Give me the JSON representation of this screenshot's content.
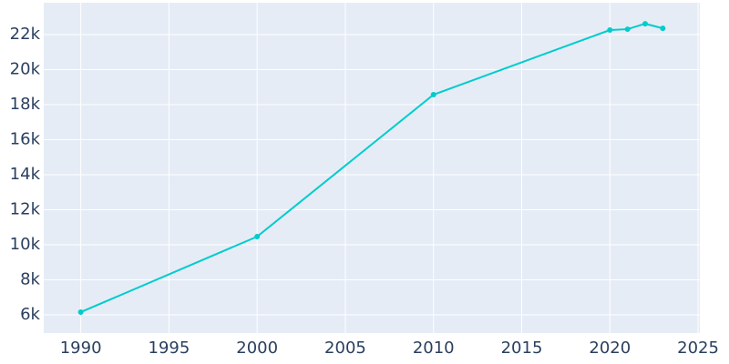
{
  "chart_data": {
    "type": "line",
    "x": [
      1990,
      2000,
      2010,
      2020,
      2021,
      2022,
      2023
    ],
    "series": [
      {
        "color": "#00cccc",
        "values": [
          6156,
          10468,
          18571,
          22260,
          22310,
          22620,
          22360
        ]
      }
    ],
    "xlim": [
      1987.9,
      2025.1
    ],
    "xticks": [
      1990,
      1995,
      2000,
      2005,
      2010,
      2015,
      2020,
      2025
    ],
    "ylim": [
      4960,
      23820
    ],
    "yticks": [
      {
        "value": 6000,
        "label": "6k"
      },
      {
        "value": 8000,
        "label": "8k"
      },
      {
        "value": 10000,
        "label": "10k"
      },
      {
        "value": 12000,
        "label": "12k"
      },
      {
        "value": 14000,
        "label": "14k"
      },
      {
        "value": 16000,
        "label": "16k"
      },
      {
        "value": 18000,
        "label": "18k"
      },
      {
        "value": 20000,
        "label": "20k"
      },
      {
        "value": 22000,
        "label": "22k"
      }
    ],
    "grid": true
  }
}
